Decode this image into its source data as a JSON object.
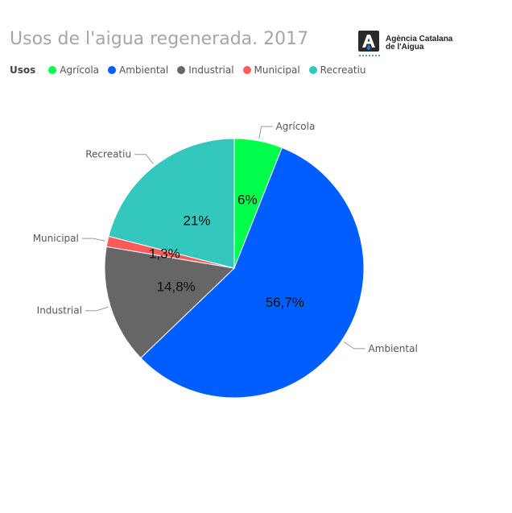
{
  "chart_data": {
    "type": "pie",
    "title": "Usos de l'aigua regenerada. 2017",
    "legend_title": "Usos",
    "legend_position": "top-left",
    "slices": [
      {
        "label": "Agrícola",
        "value": 6.0,
        "display": "6%",
        "color": "#00ff4c"
      },
      {
        "label": "Ambiental",
        "value": 56.7,
        "display": "56,7%",
        "color": "#005eff"
      },
      {
        "label": "Industrial",
        "value": 14.8,
        "display": "14,8%",
        "color": "#666666"
      },
      {
        "label": "Municipal",
        "value": 1.3,
        "display": "1,3%",
        "color": "#ff5a5a"
      },
      {
        "label": "Recreatiu",
        "value": 21.0,
        "display": "21%",
        "color": "#33c7bd"
      }
    ]
  },
  "logo": {
    "line1": "Agència Catalana",
    "line2": "de l'Aigua",
    "icon": "aca-logo-icon",
    "color": "#2a2a2a",
    "accent": "#1a7fc7"
  }
}
